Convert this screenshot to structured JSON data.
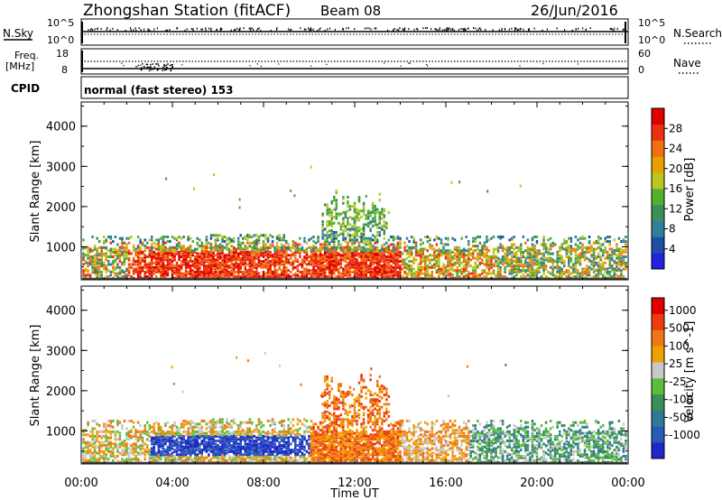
{
  "header": {
    "title": "Zhongshan Station (fitACF)",
    "beam": "Beam 08",
    "date": "26/Jun/2016"
  },
  "top_panels": {
    "nsky": {
      "label": "N.Sky",
      "left_ticks": [
        "10^5",
        "10^0"
      ],
      "right_ticks": [
        "10^5",
        "10^0"
      ],
      "right_label": "N.Search"
    },
    "freq": {
      "label_line1": "Freq.",
      "label_line2": "[MHz]",
      "left_ticks": [
        "18",
        "8"
      ],
      "right_ticks": [
        "60",
        "0"
      ],
      "right_label": "Nave"
    },
    "cpid": {
      "label": "CPID",
      "text": "normal (fast stereo) 153"
    }
  },
  "x_axis": {
    "title": "Time UT",
    "ticks": [
      "00:00",
      "04:00",
      "08:00",
      "12:00",
      "16:00",
      "20:00",
      "00:00"
    ]
  },
  "chart_data": [
    {
      "type": "heatmap",
      "panel": "power",
      "xlabel": "Time UT",
      "ylabel": "Slant Range [km]",
      "xlim": [
        0,
        24
      ],
      "ylim": [
        180,
        4600
      ],
      "y_ticks": [
        1000,
        2000,
        3000,
        4000
      ],
      "colorbar": {
        "label": "Power [dB]",
        "range": [
          0,
          32
        ],
        "ticks": [
          "4",
          "8",
          "12",
          "16",
          "20",
          "24",
          "28"
        ],
        "colors": [
          "#2222dd",
          "#1f4ea8",
          "#2f7f9a",
          "#3a8f5a",
          "#55b030",
          "#b8c820",
          "#e8a000",
          "#f07010",
          "#ec3010",
          "#e00000"
        ]
      }
    },
    {
      "type": "heatmap",
      "panel": "velocity",
      "xlabel": "Time UT",
      "ylabel": "Slant Range [km]",
      "xlim": [
        0,
        24
      ],
      "ylim": [
        180,
        4600
      ],
      "y_ticks": [
        1000,
        2000,
        3000,
        4000
      ],
      "colorbar": {
        "label": "Velocity [m s^-1]",
        "ticks": [
          "1000",
          "500",
          "100",
          "25",
          "-25",
          "-100",
          "-500",
          "-1000"
        ],
        "colors": [
          "#1e28c8",
          "#2a5ab8",
          "#2f7a92",
          "#3c8e5a",
          "#5abe3c",
          "#c8c8c8",
          "#f0a000",
          "#f07814",
          "#ec3c10",
          "#e00000"
        ]
      }
    }
  ]
}
